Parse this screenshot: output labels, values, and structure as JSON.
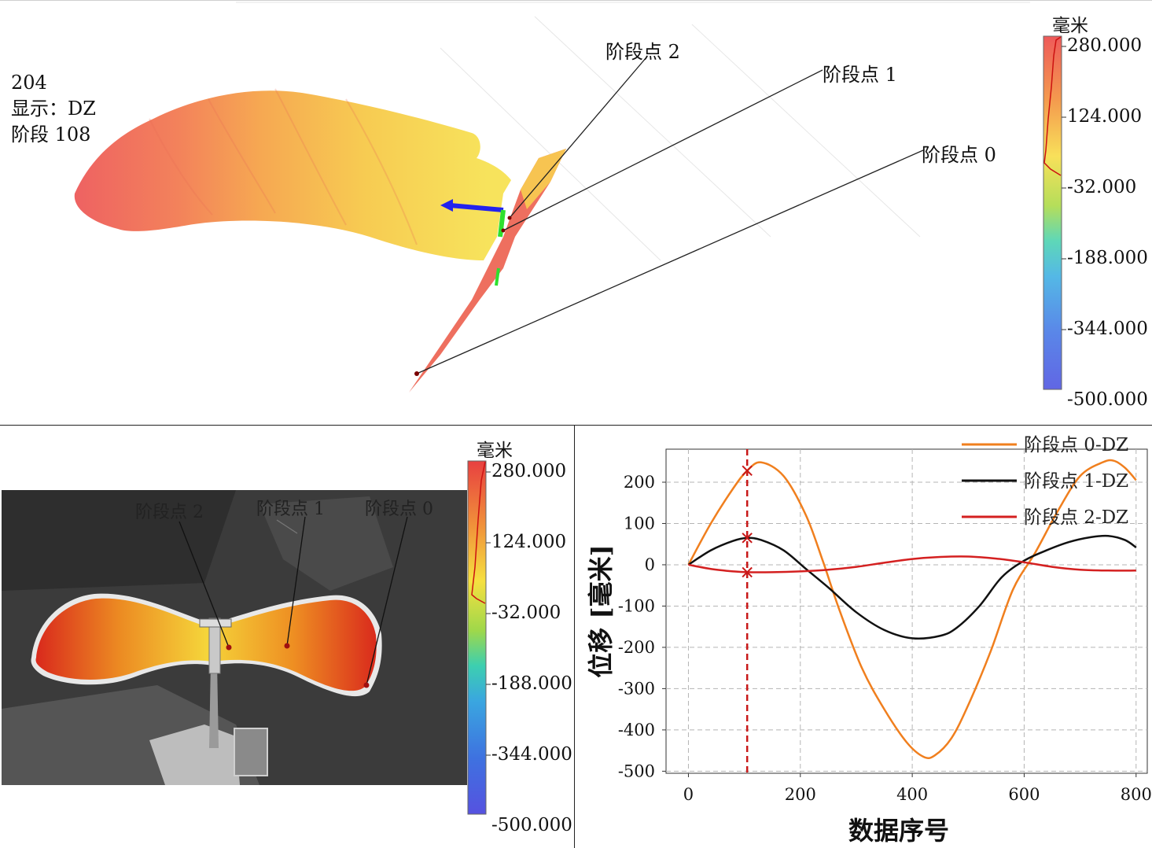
{
  "top_view": {
    "info_lines": [
      "204",
      "显示：DZ",
      "阶段 108"
    ],
    "labels": [
      "阶段点 2",
      "阶段点 1",
      "阶段点 0"
    ],
    "colorbar": {
      "unit": "毫米",
      "ticks": [
        "280.000",
        "124.000",
        "-32.000",
        "-188.000",
        "-344.000",
        "-500.000"
      ]
    }
  },
  "camera_view": {
    "labels": [
      "阶段点 2",
      "阶段点 1",
      "阶段点 0"
    ],
    "colorbar": {
      "unit": "毫米",
      "ticks": [
        "280.000",
        "124.000",
        "-32.000",
        "-188.000",
        "-344.000",
        "-500.000"
      ]
    }
  },
  "chart_data": {
    "type": "line",
    "xlabel": "数据序号",
    "ylabel": "位移 [毫米]",
    "xlim": [
      -40,
      820
    ],
    "ylim": [
      -505,
      280
    ],
    "xticks": [
      0,
      200,
      400,
      600,
      800
    ],
    "yticks": [
      200,
      100,
      0,
      -100,
      -200,
      -300,
      -400,
      -500
    ],
    "grid": true,
    "legend_position": "top-right",
    "cursor_x": 105,
    "series": [
      {
        "name": "阶段点 0-DZ",
        "color": "#f07f1e",
        "x": [
          0,
          40,
          80,
          105,
          130,
          170,
          210,
          240,
          270,
          310,
          350,
          390,
          420,
          440,
          470,
          500,
          540,
          580,
          620,
          660,
          700,
          740,
          760,
          780,
          800
        ],
        "y": [
          0,
          100,
          185,
          228,
          248,
          215,
          120,
          10,
          -110,
          -250,
          -350,
          -430,
          -465,
          -462,
          -420,
          -340,
          -210,
          -60,
          30,
          130,
          215,
          248,
          252,
          235,
          205
        ]
      },
      {
        "name": "阶段点 1-DZ",
        "color": "#111111",
        "x": [
          0,
          40,
          80,
          105,
          130,
          170,
          210,
          250,
          300,
          350,
          400,
          450,
          480,
          520,
          560,
          600,
          640,
          680,
          720,
          750,
          780,
          800
        ],
        "y": [
          0,
          35,
          58,
          65,
          60,
          35,
          -10,
          -55,
          -115,
          -158,
          -178,
          -172,
          -152,
          -100,
          -30,
          10,
          35,
          55,
          67,
          70,
          60,
          42
        ]
      },
      {
        "name": "阶段点 2-DZ",
        "color": "#d42020",
        "x": [
          0,
          40,
          80,
          105,
          150,
          200,
          250,
          300,
          350,
          400,
          450,
          500,
          550,
          600,
          650,
          700,
          750,
          800
        ],
        "y": [
          0,
          -10,
          -16,
          -18,
          -18,
          -16,
          -12,
          -5,
          5,
          14,
          19,
          20,
          15,
          6,
          -5,
          -12,
          -14,
          -14
        ]
      }
    ]
  }
}
